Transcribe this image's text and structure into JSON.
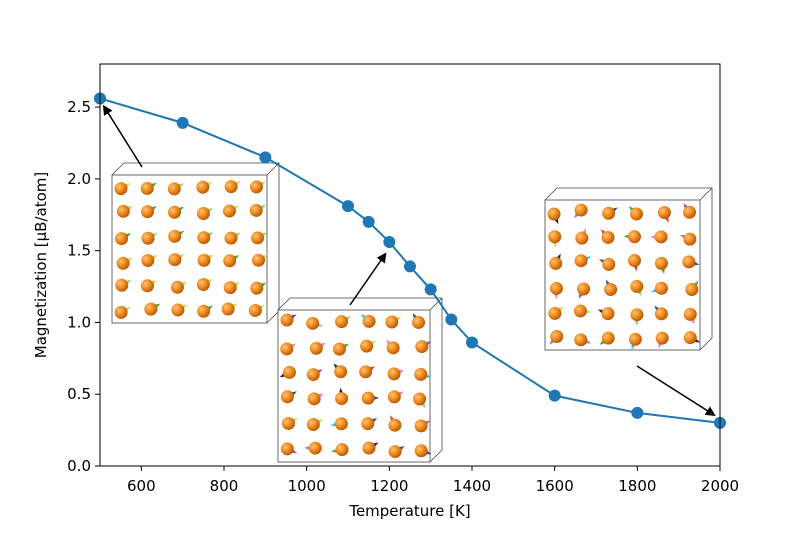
{
  "chart_data": {
    "type": "line",
    "title": "",
    "xlabel": "Temperature [K]",
    "ylabel": "Magnetization [μB/atom]",
    "xlim": [
      500,
      2000
    ],
    "ylim": [
      0.0,
      2.8
    ],
    "xticks": [
      600,
      800,
      1000,
      1200,
      1400,
      1600,
      1800,
      2000
    ],
    "yticks": [
      0.0,
      0.5,
      1.0,
      1.5,
      2.0,
      2.5
    ],
    "xtick_labels": [
      "600",
      "800",
      "1000",
      "1200",
      "1400",
      "1600",
      "1800",
      "2000"
    ],
    "ytick_labels": [
      "0.0",
      "0.5",
      "1.0",
      "1.5",
      "2.0",
      "2.5"
    ],
    "grid": false,
    "series": [
      {
        "color": "#1f77b4",
        "x": [
          500,
          700,
          900,
          1100,
          1150,
          1200,
          1250,
          1300,
          1350,
          1400,
          1600,
          1800,
          2000
        ],
        "y": [
          2.56,
          2.39,
          2.15,
          1.81,
          1.7,
          1.56,
          1.39,
          1.23,
          1.02,
          0.86,
          0.49,
          0.37,
          0.3
        ]
      }
    ],
    "annotations": [
      {
        "kind": "inset-image",
        "content": "spin-configuration-ordered",
        "points_to": {
          "x": 500,
          "y": 2.56
        }
      },
      {
        "kind": "inset-image",
        "content": "spin-configuration-partially-disordered",
        "points_to": {
          "x": 1200,
          "y": 1.56
        }
      },
      {
        "kind": "inset-image",
        "content": "spin-configuration-disordered",
        "points_to": {
          "x": 2000,
          "y": 0.3
        }
      }
    ]
  }
}
